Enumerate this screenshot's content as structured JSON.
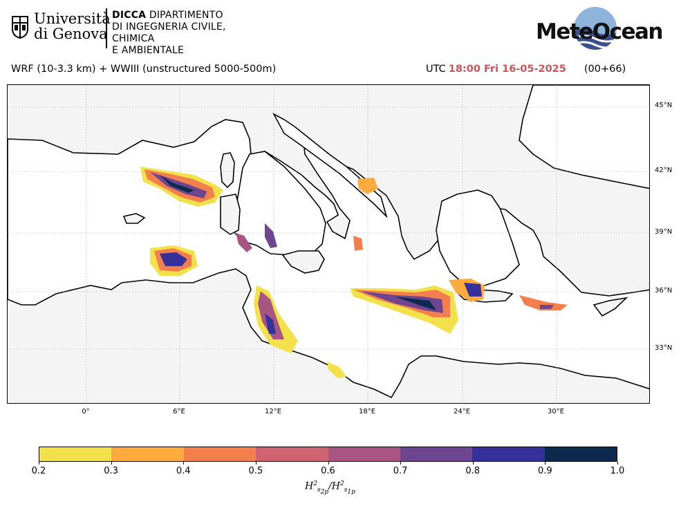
{
  "header": {
    "university_line1": "Università",
    "university_line2": "di Genova",
    "dept_bold": "DICCA",
    "dept_line1_rest": " DIPARTIMENTO",
    "dept_line2": "DI INGEGNERIA CIVILE, CHIMICA",
    "dept_line3": "E AMBIENTALE",
    "brand_logo": "MeteOcean"
  },
  "title": {
    "model": "WRF (10-3.3 km) + WWIII (unstructured 5000-500m)",
    "utc_label": "UTC",
    "datetime": "18:00 Fri 16-05-2025",
    "lead": "(00+66)",
    "accent_color": "#c9545a"
  },
  "map": {
    "land_color": "#f4f4f4",
    "sea_color": "#ffffff",
    "lat_labels": [
      "45°N",
      "42°N",
      "39°N",
      "36°N",
      "33°N"
    ],
    "lon_labels": [
      "0°",
      "6°E",
      "12°E",
      "18°E",
      "24°E",
      "30°E"
    ]
  },
  "colorbar": {
    "ticks": [
      "0.2",
      "0.3",
      "0.4",
      "0.5",
      "0.6",
      "0.7",
      "0.8",
      "0.9",
      "1.0"
    ],
    "colors": [
      "#f2e14a",
      "#fdaa3e",
      "#f27f4c",
      "#cf6470",
      "#a75582",
      "#6e4690",
      "#36309a",
      "#0b2a4e"
    ]
  }
}
